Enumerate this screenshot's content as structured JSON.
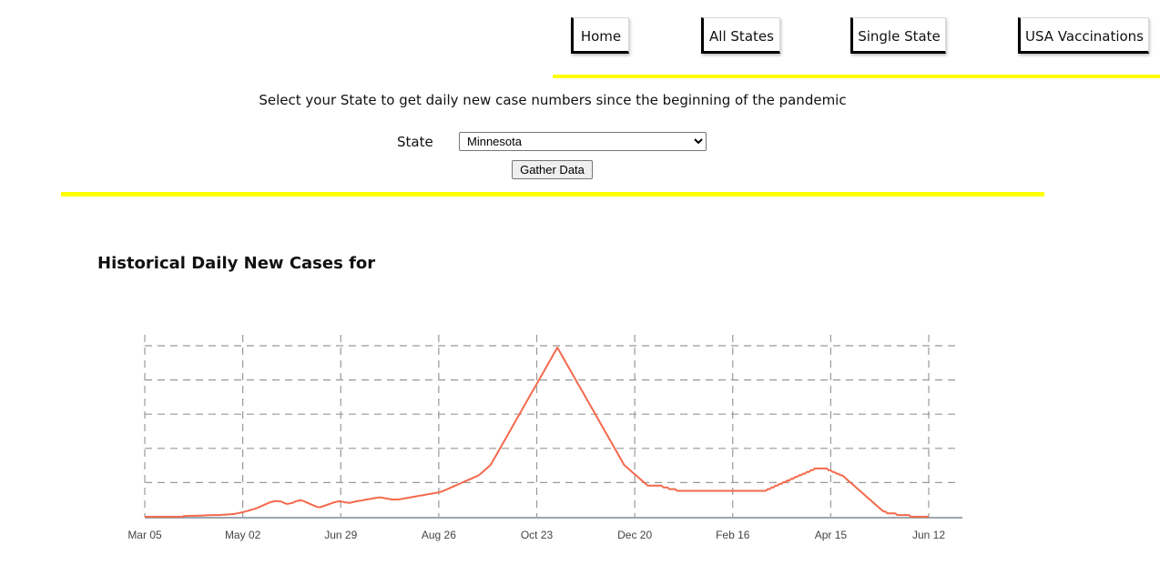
{
  "nav": {
    "items": [
      {
        "label": "Home"
      },
      {
        "label": "All States"
      },
      {
        "label": "Single State"
      },
      {
        "label": "USA Vaccinations"
      }
    ]
  },
  "form": {
    "prompt": "Select your State to get daily new case numbers since the beginning of the pandemic",
    "state_label": "State",
    "state_selected": "Minnesota",
    "gather_label": "Gather Data"
  },
  "colors": {
    "accent_line": "#ffff00",
    "series": "#f4694c",
    "grid": "#999999"
  },
  "chart_data": {
    "type": "line",
    "title": "Historical Daily New Cases for",
    "xlabel": "",
    "ylabel": "",
    "x_tick_labels": [
      "Mar 05",
      "May 02",
      "Jun 29",
      "Aug 26",
      "Oct 23",
      "Dec 20",
      "Feb 16",
      "Apr 15",
      "Jun 12"
    ],
    "y_gridlines": 5,
    "grid": true,
    "series": [
      {
        "values": [
          0,
          0,
          0,
          0,
          0,
          0,
          0,
          0,
          0,
          0,
          0,
          0,
          0,
          0,
          0,
          0,
          0,
          0,
          0,
          0,
          0.5,
          0.5,
          0.5,
          0.6,
          0.6,
          0.6,
          0.6,
          0.7,
          0.7,
          0.7,
          0.8,
          0.8,
          0.9,
          0.9,
          0.9,
          1,
          1,
          1,
          1,
          1.1,
          1.2,
          1.2,
          1.3,
          1.4,
          1.5,
          1.6,
          1.7,
          2,
          2.2,
          2.4,
          2.7,
          3,
          3.3,
          3.6,
          4,
          4.3,
          4.6,
          5,
          5.5,
          6,
          6.5,
          7,
          7.5,
          8,
          8.5,
          8.7,
          9,
          9,
          9,
          9,
          8.5,
          8,
          7.5,
          7.5,
          7.8,
          8,
          8.5,
          9,
          9.2,
          9.5,
          9.5,
          9,
          8.5,
          8,
          7.5,
          7,
          6.5,
          6,
          5.7,
          5.5,
          5.8,
          6.2,
          6.6,
          7,
          7.4,
          7.8,
          8.2,
          8.5,
          8.8,
          9,
          8.8,
          8.6,
          8.4,
          8.2,
          8,
          8.2,
          8.5,
          8.8,
          9,
          9.2,
          9.4,
          9.6,
          9.8,
          10,
          10.2,
          10.4,
          10.6,
          10.8,
          11,
          11.2,
          11.2,
          11,
          10.8,
          10.6,
          10.4,
          10.2,
          10,
          10,
          10,
          10,
          10.2,
          10.4,
          10.6,
          10.8,
          11,
          11.2,
          11.4,
          11.6,
          11.8,
          12,
          12.2,
          12.4,
          12.6,
          12.8,
          13,
          13.2,
          13.4,
          13.6,
          13.8,
          14,
          14.3,
          14.6,
          15,
          15.5,
          16,
          16.5,
          17,
          17.5,
          18,
          18.5,
          19,
          19.5,
          20,
          20.5,
          21,
          21.5,
          22,
          22.5,
          23,
          23.5,
          24,
          25,
          26,
          27,
          28,
          29,
          30,
          32,
          34,
          36,
          38,
          40,
          42,
          44,
          46,
          48,
          50,
          52,
          54,
          56,
          58,
          60,
          62,
          64,
          66,
          68,
          70,
          72,
          74,
          76,
          78,
          80,
          82,
          84,
          86,
          88,
          90,
          92,
          94,
          96,
          98,
          96,
          94,
          92,
          90,
          88,
          86,
          84,
          82,
          80,
          78,
          76,
          74,
          72,
          70,
          68,
          66,
          64,
          62,
          60,
          58,
          56,
          54,
          52,
          50,
          48,
          46,
          44,
          42,
          40,
          38,
          36,
          34,
          32,
          30,
          29,
          28,
          27,
          26,
          25,
          24,
          23,
          22,
          21,
          20,
          19,
          18,
          18,
          18,
          18,
          18,
          18,
          18,
          18,
          17,
          17,
          17,
          16,
          16,
          16,
          16,
          15,
          15,
          15,
          15,
          15,
          15,
          15,
          15,
          15,
          15,
          15,
          15,
          15,
          15,
          15,
          15,
          15,
          15,
          15,
          15,
          15,
          15,
          15,
          15,
          15,
          15,
          15,
          15,
          15,
          15,
          15,
          15,
          15,
          15,
          15,
          15,
          15,
          15,
          15,
          15,
          15,
          15,
          15,
          15,
          15,
          15,
          16,
          16,
          17,
          17,
          18,
          18,
          19,
          19,
          20,
          20,
          21,
          21,
          22,
          22,
          23,
          23,
          24,
          24,
          25,
          25,
          26,
          26,
          27,
          27,
          28,
          28,
          28,
          28,
          28,
          28,
          28,
          27,
          27,
          26,
          26,
          25,
          25,
          24,
          24,
          23,
          22,
          21,
          20,
          19,
          18,
          17,
          16,
          15,
          14,
          13,
          12,
          11,
          10,
          9,
          8,
          7,
          6,
          5,
          4,
          3,
          3,
          2,
          2,
          2,
          2,
          2,
          1,
          1,
          1,
          1,
          1,
          1,
          1,
          0,
          0,
          0,
          0,
          0,
          0,
          0,
          0,
          0,
          0
        ]
      }
    ]
  }
}
